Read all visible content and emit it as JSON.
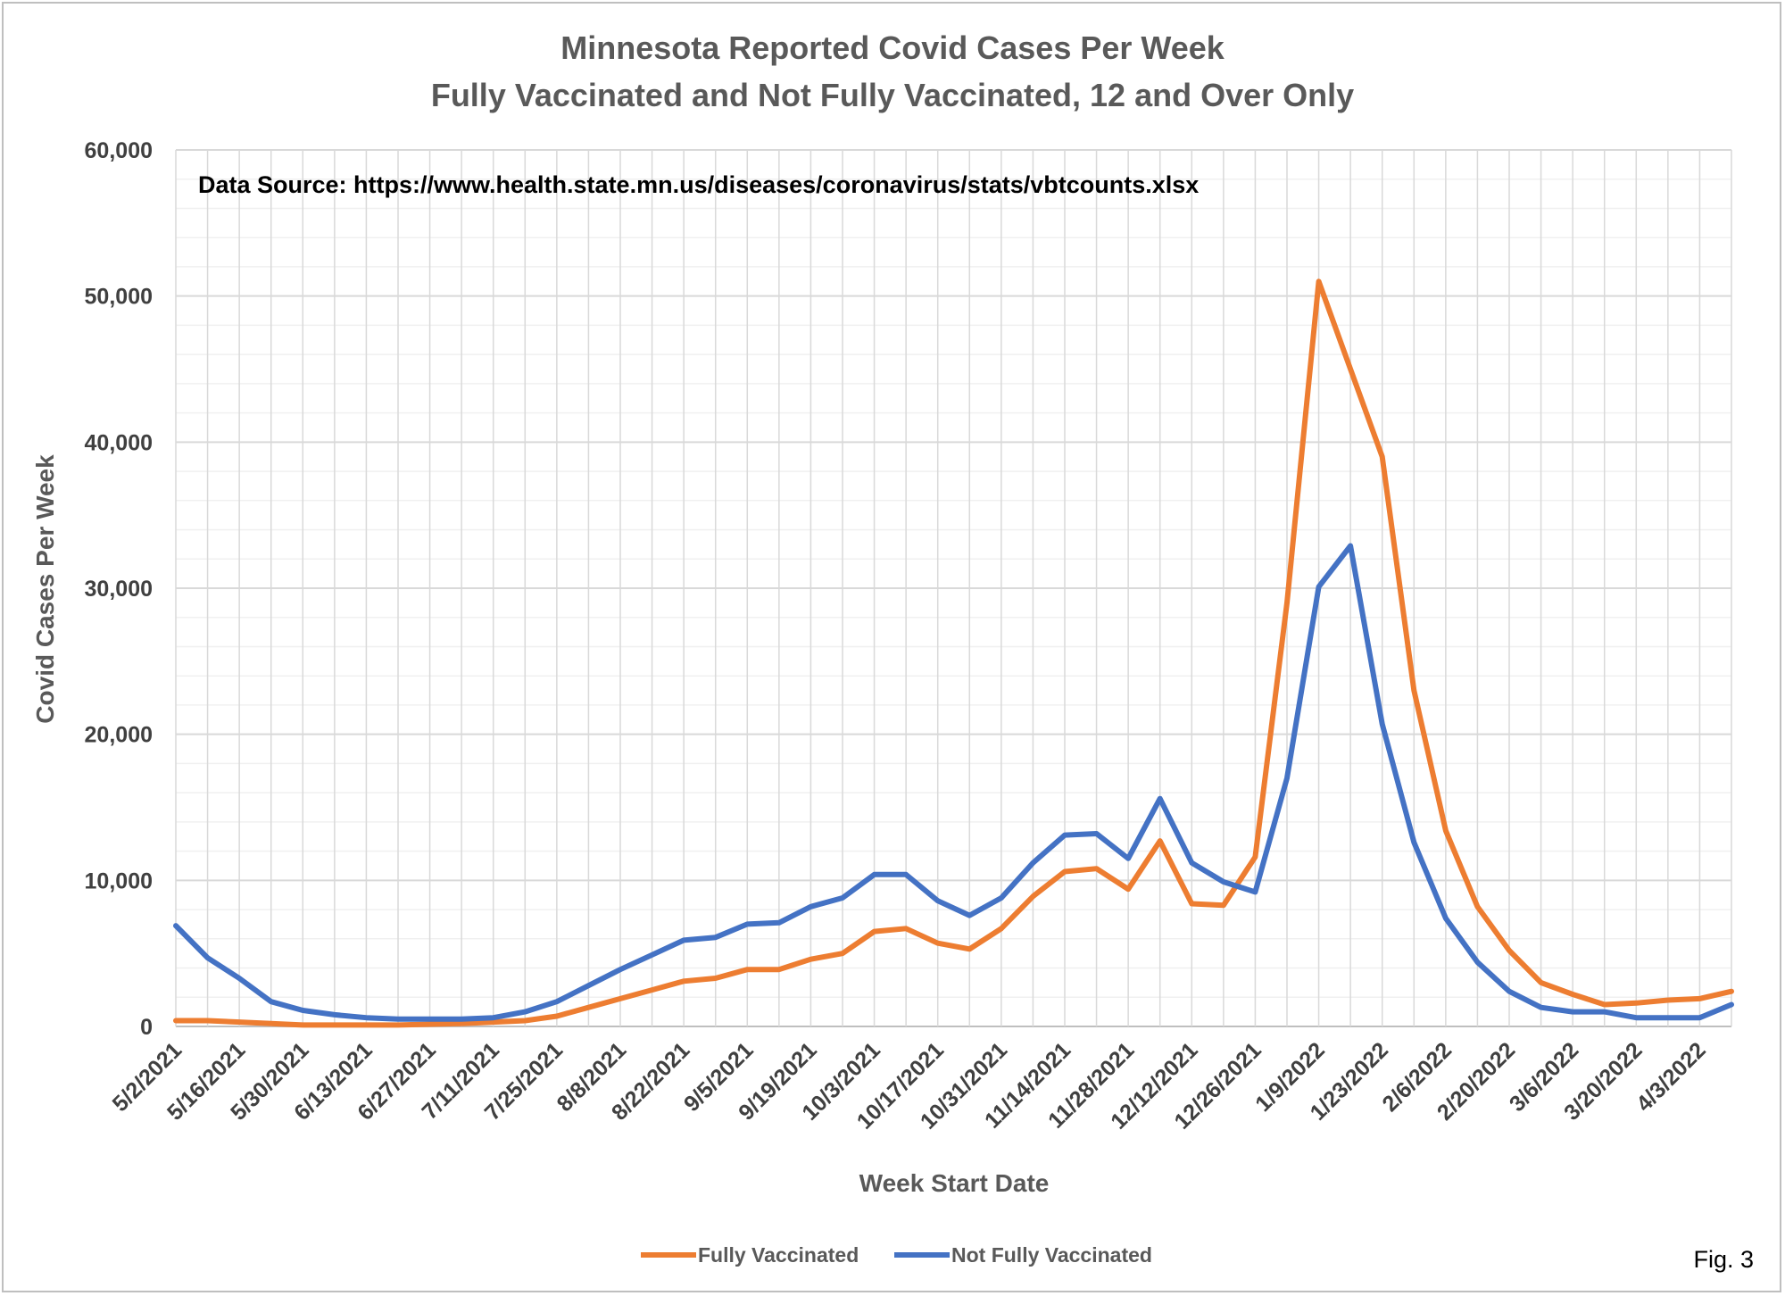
{
  "chart_data": {
    "type": "line",
    "title": "Minnesota Reported Covid Cases Per Week",
    "subtitle": "Fully Vaccinated and Not Fully Vaccinated, 12 and Over Only",
    "xlabel": "Week Start Date",
    "ylabel": "Covid Cases Per Week",
    "ylim": [
      0,
      60000
    ],
    "y_ticks": [
      0,
      10000,
      20000,
      30000,
      40000,
      50000,
      60000
    ],
    "y_tick_labels": [
      "0",
      "10,000",
      "20,000",
      "30,000",
      "40,000",
      "50,000",
      "60,000"
    ],
    "x_tick_labels": [
      "5/2/2021",
      "5/16/2021",
      "5/30/2021",
      "6/13/2021",
      "6/27/2021",
      "7/11/2021",
      "7/25/2021",
      "8/8/2021",
      "8/22/2021",
      "9/5/2021",
      "9/19/2021",
      "10/3/2021",
      "10/17/2021",
      "10/31/2021",
      "11/14/2021",
      "11/28/2021",
      "12/12/2021",
      "12/26/2021",
      "1/9/2022",
      "1/23/2022",
      "2/6/2022",
      "2/20/2022",
      "3/6/2022",
      "3/20/2022",
      "4/3/2022"
    ],
    "grid": true,
    "annotation": "Data Source: https://www.health.state.mn.us/diseases/coronavirus/stats/vbtcounts.xlsx",
    "legend_position": "bottom",
    "series": [
      {
        "name": "Fully Vaccinated",
        "color": "#ED7D31",
        "values": [
          400,
          400,
          300,
          200,
          100,
          100,
          100,
          100,
          150,
          200,
          300,
          400,
          700,
          1300,
          1900,
          2500,
          3100,
          3300,
          3900,
          3900,
          4600,
          5000,
          6500,
          6700,
          5700,
          5300,
          6700,
          8900,
          10600,
          10800,
          9400,
          12700,
          8400,
          8300,
          11600,
          29000,
          51000,
          45000,
          39000,
          23000,
          13400,
          8200,
          5200,
          3000,
          2200,
          1500,
          1600,
          1800,
          1900,
          2400
        ]
      },
      {
        "name": "Not Fully Vaccinated",
        "color": "#4472C4",
        "values": [
          6900,
          4700,
          3300,
          1700,
          1100,
          800,
          600,
          500,
          500,
          500,
          600,
          1000,
          1700,
          2800,
          3900,
          4900,
          5900,
          6100,
          7000,
          7100,
          8200,
          8800,
          10400,
          10400,
          8600,
          7600,
          8800,
          11200,
          13100,
          13200,
          11500,
          15600,
          11200,
          9900,
          9200,
          17000,
          30100,
          32900,
          20700,
          12600,
          7400,
          4400,
          2400,
          1300,
          1000,
          1000,
          600,
          600,
          600,
          1500
        ]
      }
    ]
  },
  "figure_label": "Fig. 3"
}
